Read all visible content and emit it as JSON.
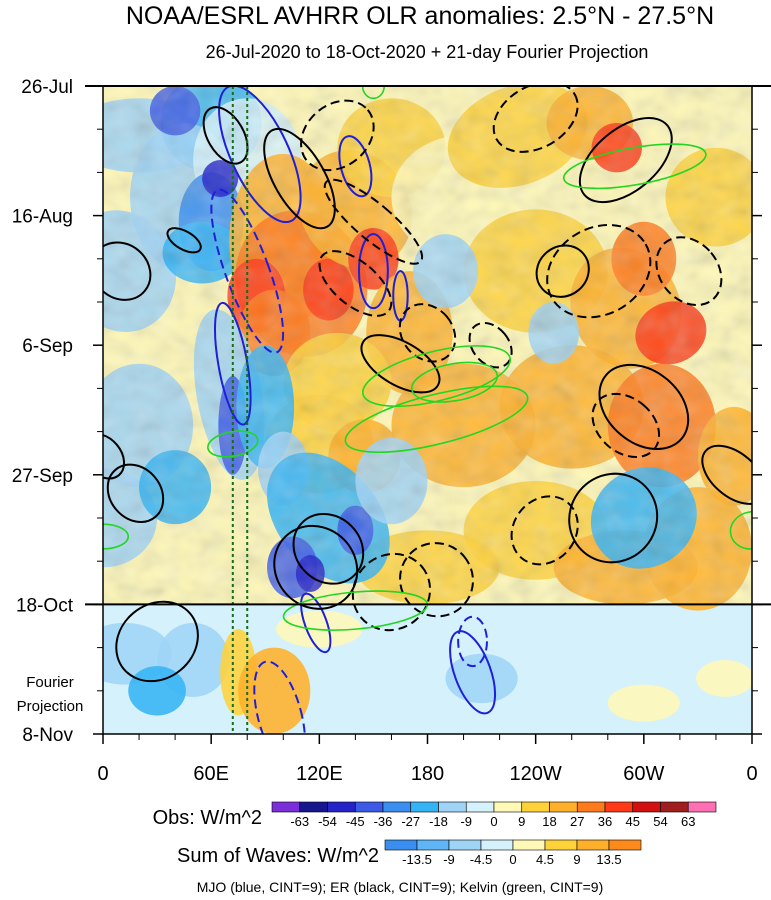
{
  "chart_data": {
    "type": "heatmap",
    "title": "NOAA/ESRL AVHRR OLR anomalies: 2.5°N - 27.5°N",
    "subtitle": "26-Jul-2020 to 18-Oct-2020 + 21-day Fourier Projection",
    "x_axis": {
      "ticks": [
        {
          "lon": 0,
          "label": "0"
        },
        {
          "lon": 60,
          "label": "60E"
        },
        {
          "lon": 120,
          "label": "120E"
        },
        {
          "lon": 180,
          "label": "180"
        },
        {
          "lon": 240,
          "label": "120W"
        },
        {
          "lon": 300,
          "label": "60W"
        },
        {
          "lon": 360,
          "label": "0"
        }
      ],
      "range": [
        0,
        360
      ]
    },
    "y_axis": {
      "ticks": [
        {
          "day": 0,
          "label": "26-Jul"
        },
        {
          "day": 21,
          "label": "16-Aug"
        },
        {
          "day": 42,
          "label": "6-Sep"
        },
        {
          "day": 63,
          "label": "27-Sep"
        },
        {
          "day": 84,
          "label": "18-Oct"
        },
        {
          "day": 105,
          "label": "8-Nov"
        }
      ],
      "range_days": [
        0,
        105
      ],
      "projection_start_day": 84,
      "projection_label_lines": [
        "Fourier",
        "Projection"
      ]
    },
    "obs_colorbar": {
      "label": "Obs: W/m^2",
      "levels": [
        "-63",
        "-54",
        "-45",
        "-36",
        "-27",
        "-18",
        "-9",
        "0",
        "9",
        "18",
        "27",
        "36",
        "45",
        "54",
        "63"
      ],
      "colors": [
        "#7b2fd9",
        "#16168f",
        "#2323c8",
        "#3c5ae6",
        "#3a8ef0",
        "#35b4f5",
        "#9fd4f7",
        "#d5f1fb",
        "#fff8b7",
        "#ffd23a",
        "#ffb02a",
        "#ff7a1c",
        "#ff3a16",
        "#d40f0f",
        "#a01e1e",
        "#ff6fb4"
      ]
    },
    "waves_colorbar": {
      "label": "Sum of Waves: W/m^2",
      "levels": [
        "-13.5",
        "-9",
        "-4.5",
        "0",
        "4.5",
        "9",
        "13.5"
      ],
      "colors": [
        "#3a8ef0",
        "#5fb5f5",
        "#9fd4f7",
        "#d5f1fb",
        "#fff8b7",
        "#ffd23a",
        "#ffb02a",
        "#ff8a1c"
      ]
    },
    "wave_contours": {
      "caption": "MJO (blue, CINT=9); ER (black, CINT=9); Kelvin (green, CINT=9)",
      "mjo_color": "#1f1fd6",
      "er_color": "#000000",
      "kelvin_color": "#22d622",
      "reference_lines_lon": [
        72,
        80
      ],
      "reference_line_color": "#1c6b1c"
    }
  }
}
